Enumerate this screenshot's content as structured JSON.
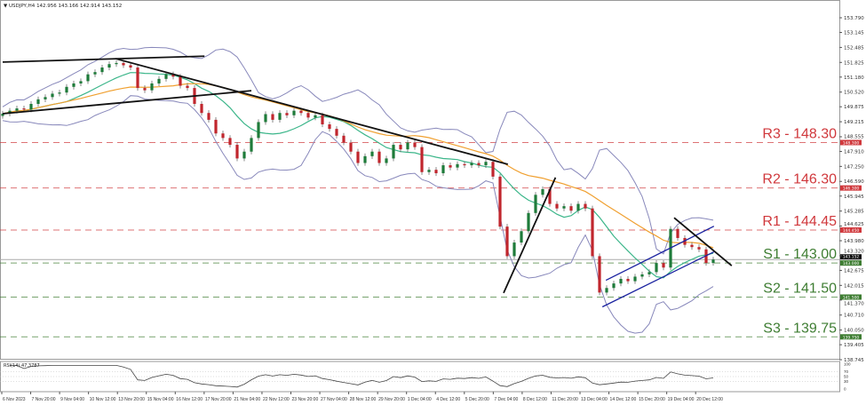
{
  "header": {
    "symbol": "USDJPY,H4",
    "ohlc": "142.956 143.166 142.914 143.152"
  },
  "rsi": {
    "label": "RSI(14) 47.3787",
    "ticks": [
      100,
      70,
      50,
      30,
      0
    ]
  },
  "colors": {
    "bull": "#1e7b3a",
    "bear": "#c0262d",
    "resistance": "#d0383c",
    "support": "#3e7d32",
    "ma_fast": "#3cb68a",
    "ma_slow": "#f0a030",
    "bands": "#8888bb",
    "channel": "#1a22a0",
    "trendline": "#111111"
  },
  "chart_data": {
    "type": "candlestick",
    "title": "USDJPY,H4",
    "ylim": [
      138.745,
      153.79
    ],
    "yticks": [
      "153.790",
      "153.145",
      "152.485",
      "151.825",
      "151.180",
      "150.520",
      "149.875",
      "149.215",
      "148.555",
      "147.910",
      "147.250",
      "146.590",
      "145.945",
      "145.285",
      "144.625",
      "143.980",
      "143.320",
      "142.675",
      "142.015",
      "141.370",
      "140.710",
      "140.050",
      "139.405",
      "138.745"
    ],
    "xticks": [
      "6 Nov 2023",
      "7 Nov 20:00",
      "9 Nov 04:00",
      "10 Nov 12:00",
      "13 Nov 20:00",
      "15 Nov 04:00",
      "16 Nov 12:00",
      "17 Nov 20:00",
      "21 Nov 04:00",
      "22 Nov 12:00",
      "23 Nov 20:00",
      "27 Nov 04:00",
      "28 Nov 12:00",
      "29 Nov 20:00",
      "1 Dec 04:00",
      "4 Dec 12:00",
      "5 Dec 20:00",
      "7 Dec 04:00",
      "8 Dec 12:00",
      "11 Dec 20:00",
      "13 Dec 04:00",
      "14 Dec 12:00",
      "15 Dec 20:00",
      "19 Dec 04:00",
      "20 Dec 12:00"
    ],
    "close": [
      149.57,
      149.7,
      149.8,
      149.75,
      150.0,
      150.2,
      150.3,
      150.45,
      150.5,
      150.75,
      150.9,
      151.0,
      151.3,
      151.4,
      151.6,
      151.75,
      151.8,
      151.7,
      151.6,
      150.7,
      150.6,
      150.9,
      151.1,
      151.3,
      151.2,
      150.8,
      150.7,
      150.0,
      149.6,
      149.3,
      148.7,
      148.5,
      148.2,
      147.6,
      147.9,
      148.5,
      149.2,
      149.55,
      149.3,
      149.6,
      149.5,
      149.7,
      149.6,
      149.4,
      149.5,
      149.1,
      148.9,
      148.6,
      148.3,
      147.9,
      147.4,
      147.7,
      147.9,
      147.4,
      147.6,
      148.2,
      148.0,
      148.3,
      148.1,
      147.0,
      147.1,
      146.95,
      147.3,
      147.2,
      147.35,
      147.3,
      147.4,
      147.3,
      147.45,
      146.8,
      144.6,
      143.3,
      143.9,
      144.4,
      145.2,
      146.0,
      146.25,
      145.6,
      145.4,
      145.5,
      145.3,
      145.6,
      145.4,
      143.3,
      141.7,
      141.9,
      142.1,
      142.3,
      142.2,
      142.4,
      142.5,
      142.6,
      143.0,
      142.8,
      144.5,
      144.1,
      143.8,
      143.7,
      143.6,
      143.0,
      143.152
    ],
    "levels": [
      {
        "name": "R3 - 148.30",
        "price": 148.3,
        "tag": "148.300",
        "kind": "resistance"
      },
      {
        "name": "R2 - 146.30",
        "price": 146.3,
        "tag": "146.300",
        "kind": "resistance"
      },
      {
        "name": "R1 - 144.45",
        "price": 144.45,
        "tag": "144.450",
        "kind": "resistance"
      },
      {
        "name": "S1 - 143.00",
        "price": 143.0,
        "tag": "143.000",
        "kind": "support"
      },
      {
        "name": "S2 - 141.50",
        "price": 141.5,
        "tag": "141.500",
        "kind": "support"
      },
      {
        "name": "S3 - 139.75",
        "price": 139.75,
        "tag": "139.750",
        "kind": "support"
      }
    ],
    "current_price": {
      "price": 143.152,
      "tag": "143.152"
    },
    "trendlines": [
      {
        "from": [
          0,
          151.84
        ],
        "to": [
          28.4,
          152.1
        ],
        "color": "trendline"
      },
      {
        "from": [
          0,
          149.57
        ],
        "to": [
          35,
          150.58
        ],
        "color": "trendline"
      },
      {
        "from": [
          15.9,
          151.99
        ],
        "to": [
          71.1,
          147.34
        ],
        "color": "trendline"
      },
      {
        "from": [
          70.5,
          141.68
        ],
        "to": [
          77.8,
          146.76
        ],
        "color": "trendline"
      },
      {
        "from": [
          84.4,
          141.07
        ],
        "to": [
          100.1,
          143.49
        ],
        "color": "channel"
      },
      {
        "from": [
          84.9,
          142.24
        ],
        "to": [
          100.1,
          144.62
        ],
        "color": "channel"
      },
      {
        "from": [
          94.5,
          144.99
        ],
        "to": [
          102.6,
          142.88
        ],
        "color": "trendline"
      }
    ]
  }
}
